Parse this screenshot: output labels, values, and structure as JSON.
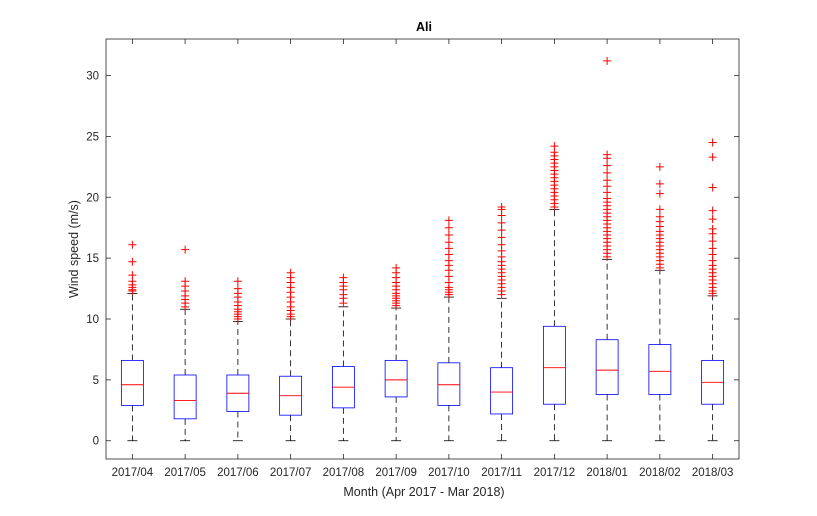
{
  "chart_data": {
    "type": "boxplot",
    "title": "Ali",
    "xlabel": "Month (Apr 2017 - Mar 2018)",
    "ylabel": "Wind speed (m/s)",
    "ylim": [
      -1.5,
      33
    ],
    "yticks": [
      0,
      5,
      10,
      15,
      20,
      25,
      30
    ],
    "grid": false,
    "legend": "none",
    "colors": {
      "box": "#0000ff",
      "median": "#ff0000",
      "whisker": "#000000",
      "outlier": "#ff0000",
      "axes": "#262626"
    },
    "categories": [
      "2017/04",
      "2017/05",
      "2017/06",
      "2017/07",
      "2017/08",
      "2017/09",
      "2017/10",
      "2017/11",
      "2017/12",
      "2018/01",
      "2018/02",
      "2018/03"
    ],
    "boxes": [
      {
        "min": 0,
        "q1": 2.9,
        "median": 4.6,
        "q3": 6.6,
        "max": 12.1,
        "outliers": [
          12.3,
          12.4,
          12.6,
          12.8,
          13.1,
          13.6,
          14.7,
          16.1
        ]
      },
      {
        "min": 0,
        "q1": 1.8,
        "median": 3.3,
        "q3": 5.4,
        "max": 10.8,
        "outliers": [
          11.0,
          11.3,
          11.6,
          11.9,
          12.3,
          12.7,
          13.1,
          15.7
        ]
      },
      {
        "min": 0,
        "q1": 2.4,
        "median": 3.9,
        "q3": 5.4,
        "max": 9.8,
        "outliers": [
          10.0,
          10.2,
          10.4,
          10.6,
          10.8,
          11.1,
          11.4,
          11.8,
          12.1,
          12.5,
          13.1
        ]
      },
      {
        "min": 0,
        "q1": 2.1,
        "median": 3.7,
        "q3": 5.3,
        "max": 10.0,
        "outliers": [
          10.2,
          10.4,
          10.7,
          11.0,
          11.4,
          11.8,
          12.2,
          12.6,
          13.0,
          13.4,
          13.8
        ]
      },
      {
        "min": 0,
        "q1": 2.7,
        "median": 4.4,
        "q3": 6.1,
        "max": 11.0,
        "outliers": [
          11.3,
          11.7,
          12.0,
          12.4,
          12.7,
          13.0,
          13.4
        ]
      },
      {
        "min": 0,
        "q1": 3.6,
        "median": 5.0,
        "q3": 6.6,
        "max": 10.9,
        "outliers": [
          11.1,
          11.3,
          11.5,
          11.7,
          11.9,
          12.1,
          12.4,
          12.7,
          13.0,
          13.4,
          13.8,
          14.2
        ]
      },
      {
        "min": 0,
        "q1": 2.9,
        "median": 4.6,
        "q3": 6.4,
        "max": 11.8,
        "outliers": [
          12.0,
          12.2,
          12.4,
          12.6,
          13.0,
          13.5,
          14.0,
          14.4,
          14.8,
          15.3,
          15.8,
          16.3,
          16.9,
          17.5,
          18.1
        ]
      },
      {
        "min": 0,
        "q1": 2.2,
        "median": 4.0,
        "q3": 6.0,
        "max": 11.7,
        "outliers": [
          12.0,
          12.3,
          12.6,
          12.9,
          13.2,
          13.5,
          13.8,
          14.1,
          14.4,
          14.7,
          15.1,
          15.6,
          16.1,
          16.7,
          17.3,
          17.9,
          18.5,
          19.0,
          19.2
        ]
      },
      {
        "min": 0,
        "q1": 3.0,
        "median": 6.0,
        "q3": 9.4,
        "max": 19.0,
        "outliers": [
          19.2,
          19.5,
          19.8,
          20.1,
          20.4,
          20.7,
          21.0,
          21.3,
          21.6,
          21.9,
          22.2,
          22.5,
          22.8,
          23.1,
          23.4,
          23.7,
          24.2
        ]
      },
      {
        "min": 0,
        "q1": 3.8,
        "median": 5.8,
        "q3": 8.3,
        "max": 14.9,
        "outliers": [
          15.1,
          15.4,
          15.7,
          16.0,
          16.3,
          16.6,
          16.9,
          17.2,
          17.5,
          17.8,
          18.1,
          18.4,
          18.7,
          19.0,
          19.3,
          19.6,
          19.9,
          20.4,
          20.9,
          21.4,
          22.0,
          22.6,
          23.2,
          23.5,
          31.2
        ]
      },
      {
        "min": 0,
        "q1": 3.8,
        "median": 5.7,
        "q3": 7.9,
        "max": 14.0,
        "outliers": [
          14.2,
          14.5,
          14.8,
          15.1,
          15.4,
          15.7,
          16.0,
          16.3,
          16.6,
          16.9,
          17.2,
          17.6,
          18.0,
          18.4,
          19.0,
          20.3,
          21.1,
          22.5
        ]
      },
      {
        "min": 0,
        "q1": 3.0,
        "median": 4.8,
        "q3": 6.6,
        "max": 11.9,
        "outliers": [
          12.1,
          12.3,
          12.6,
          12.9,
          13.2,
          13.5,
          13.8,
          14.1,
          14.4,
          14.8,
          15.3,
          15.8,
          16.4,
          17.0,
          17.4,
          18.2,
          18.9,
          20.8,
          23.3,
          24.5
        ]
      }
    ]
  }
}
